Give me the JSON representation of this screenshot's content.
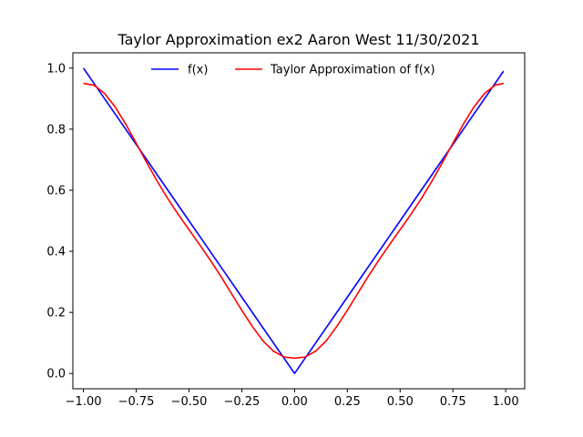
{
  "chart_data": {
    "type": "line",
    "title": "Taylor Approximation ex2 Aaron West 11/30/2021",
    "xlabel": "",
    "ylabel": "",
    "xlim": [
      -1.05,
      1.09
    ],
    "ylim": [
      -0.05,
      1.05
    ],
    "grid": false,
    "legend_position": "top-center",
    "x_ticks": [
      -1.0,
      -0.75,
      -0.5,
      -0.25,
      0.0,
      0.25,
      0.5,
      0.75,
      1.0
    ],
    "x_tick_labels": [
      "−1.00",
      "−0.75",
      "−0.50",
      "−0.25",
      "0.00",
      "0.25",
      "0.50",
      "0.75",
      "1.00"
    ],
    "y_ticks": [
      0.0,
      0.2,
      0.4,
      0.6,
      0.8,
      1.0
    ],
    "y_tick_labels": [
      "0.0",
      "0.2",
      "0.4",
      "0.6",
      "0.8",
      "1.0"
    ],
    "series": [
      {
        "name": "f(x)",
        "color": "#0000ff",
        "x": [
          -1.0,
          -0.75,
          -0.5,
          -0.25,
          0.0,
          0.25,
          0.5,
          0.75,
          0.99
        ],
        "y": [
          1.0,
          0.75,
          0.5,
          0.25,
          0.0,
          0.25,
          0.5,
          0.75,
          0.99
        ]
      },
      {
        "name": "Taylor Approximation of f(x)",
        "color": "#ff0000",
        "x": [
          -1.0,
          -0.95,
          -0.9,
          -0.85,
          -0.8,
          -0.75,
          -0.7,
          -0.65,
          -0.6,
          -0.55,
          -0.5,
          -0.45,
          -0.4,
          -0.35,
          -0.3,
          -0.25,
          -0.2,
          -0.15,
          -0.1,
          -0.05,
          0.0,
          0.05,
          0.1,
          0.15,
          0.2,
          0.25,
          0.3,
          0.35,
          0.4,
          0.45,
          0.5,
          0.55,
          0.6,
          0.65,
          0.7,
          0.75,
          0.8,
          0.85,
          0.9,
          0.95,
          0.99
        ],
        "y": [
          0.95,
          0.944,
          0.917,
          0.873,
          0.817,
          0.754,
          0.69,
          0.629,
          0.572,
          0.52,
          0.471,
          0.422,
          0.372,
          0.319,
          0.263,
          0.207,
          0.154,
          0.107,
          0.073,
          0.054,
          0.05,
          0.054,
          0.073,
          0.107,
          0.154,
          0.207,
          0.263,
          0.319,
          0.372,
          0.422,
          0.471,
          0.52,
          0.572,
          0.629,
          0.69,
          0.754,
          0.817,
          0.873,
          0.917,
          0.944,
          0.95
        ]
      }
    ]
  }
}
